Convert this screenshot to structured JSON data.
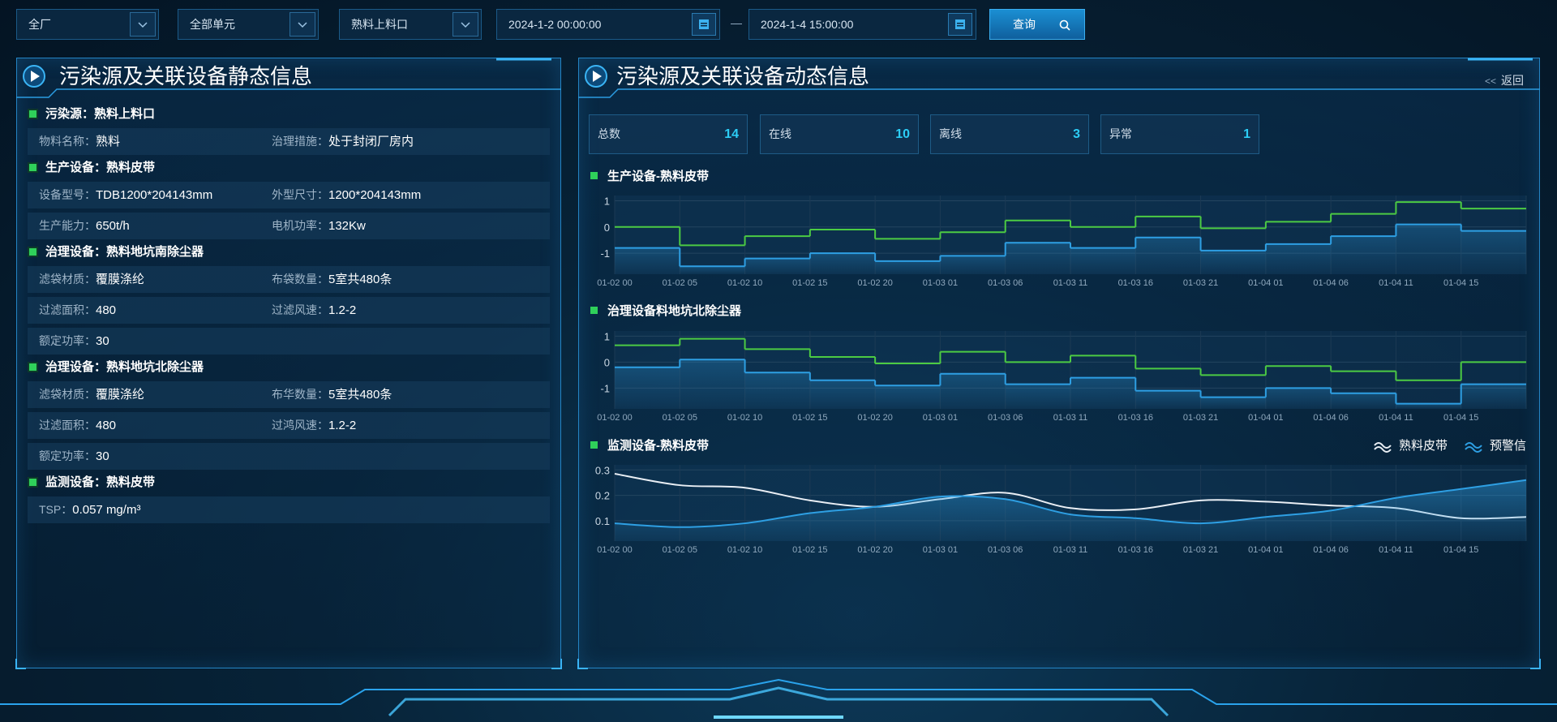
{
  "filters": {
    "selects": [
      "全厂",
      "全部单元",
      "熟料上料口"
    ],
    "start_date": "2024-1-2 00:00:00",
    "end_date": "2024-1-4 15:00:00",
    "button": "查询"
  },
  "static_panel": {
    "title": "污染源及关联设备静态信息",
    "sections": [
      {
        "title": "污染源：熟料上料口",
        "rows": [
          [
            {
              "label": "物料名称：",
              "value": "熟料"
            },
            {
              "label": "治理措施：",
              "value": "处于封闭厂房内"
            }
          ]
        ]
      },
      {
        "title": "生产设备：熟料皮带",
        "rows": [
          [
            {
              "label": "设备型号：",
              "value": "TDB1200*204143mm"
            },
            {
              "label": "外型尺寸：",
              "value": "1200*204143mm"
            }
          ],
          [
            {
              "label": "生产能力：",
              "value": "650t/h"
            },
            {
              "label": "电机功率：",
              "value": "132Kw"
            }
          ]
        ]
      },
      {
        "title": "治理设备：熟料地坑南除尘器",
        "rows": [
          [
            {
              "label": "滤袋材质：",
              "value": "覆膜涤纶"
            },
            {
              "label": "布袋数量：",
              "value": "5室共480条"
            }
          ],
          [
            {
              "label": "过滤面积：",
              "value": "480"
            },
            {
              "label": "过滤风速：",
              "value": "1.2-2"
            }
          ],
          [
            {
              "label": "额定功率：",
              "value": "30"
            }
          ]
        ]
      },
      {
        "title": "治理设备：熟料地坑北除尘器",
        "rows": [
          [
            {
              "label": "滤袋材质：",
              "value": "覆膜涤纶"
            },
            {
              "label": "布华数量：",
              "value": "5室共480条"
            }
          ],
          [
            {
              "label": "过滤面积：",
              "value": "480"
            },
            {
              "label": "过鸿风速：",
              "value": "1.2-2"
            }
          ],
          [
            {
              "label": "额定功率：",
              "value": "30"
            }
          ]
        ]
      },
      {
        "title": "监测设备：熟料皮带",
        "rows": [
          [
            {
              "label": "TSP：",
              "value": "0.057 mg/m³"
            }
          ]
        ]
      }
    ]
  },
  "dynamic_panel": {
    "title": "污染源及关联设备动态信息",
    "back": "返回",
    "stats": [
      {
        "label": "总数",
        "value": 14
      },
      {
        "label": "在线",
        "value": 10
      },
      {
        "label": "离线",
        "value": 3
      },
      {
        "label": "异常",
        "value": 1
      }
    ]
  },
  "chart_data": [
    {
      "type": "step",
      "title": "生产设备-熟料皮带",
      "categories": [
        "01-02 00",
        "01-02 05",
        "01-02 10",
        "01-02 15",
        "01-02 20",
        "01-03 01",
        "01-03 06",
        "01-03 11",
        "01-03 16",
        "01-03 21",
        "01-04 01",
        "01-04 06",
        "01-04 11",
        "01-04 15"
      ],
      "series": [
        {
          "color": "#4ccb43",
          "values": [
            0,
            -0.7,
            -0.35,
            -0.1,
            -0.45,
            -0.2,
            0.25,
            0,
            0.4,
            -0.05,
            0.2,
            0.5,
            0.95,
            0.7
          ]
        },
        {
          "color": "#2e9fe3",
          "area": true,
          "values": [
            -0.8,
            -1.5,
            -1.2,
            -1.0,
            -1.3,
            -1.1,
            -0.6,
            -0.8,
            -0.4,
            -0.9,
            -0.65,
            -0.35,
            0.1,
            -0.15
          ]
        }
      ],
      "ylim": [
        -1.8,
        1.2
      ],
      "yticks": [
        1,
        0,
        -1
      ],
      "grid": true
    },
    {
      "type": "step",
      "title": "治理设备料地坑北除尘器",
      "categories": [
        "01-02 00",
        "01-02 05",
        "01-02 10",
        "01-02 15",
        "01-02 20",
        "01-03 01",
        "01-03 06",
        "01-03 11",
        "01-03 16",
        "01-03 21",
        "01-04 01",
        "01-04 06",
        "01-04 11",
        "01-04 15"
      ],
      "series": [
        {
          "color": "#4ccb43",
          "values": [
            0.65,
            0.9,
            0.5,
            0.2,
            -0.05,
            0.4,
            0,
            0.25,
            -0.25,
            -0.5,
            -0.15,
            -0.35,
            -0.7,
            0
          ]
        },
        {
          "color": "#2e9fe3",
          "area": true,
          "values": [
            -0.2,
            0.1,
            -0.4,
            -0.7,
            -0.9,
            -0.45,
            -0.85,
            -0.6,
            -1.1,
            -1.35,
            -1.0,
            -1.2,
            -1.6,
            -0.85
          ]
        }
      ],
      "ylim": [
        -1.8,
        1.2
      ],
      "yticks": [
        1,
        0,
        -1
      ],
      "grid": true
    },
    {
      "type": "smooth",
      "title": "监测设备-熟料皮带",
      "categories": [
        "01-02 00",
        "01-02 05",
        "01-02 10",
        "01-02 15",
        "01-02 20",
        "01-03 01",
        "01-03 06",
        "01-03 11",
        "01-03 16",
        "01-03 21",
        "01-04 01",
        "01-04 06",
        "01-04 11",
        "01-04 15",
        null
      ],
      "series": [
        {
          "name": "熟料皮带",
          "color": "#e9eef4",
          "values": [
            0.285,
            0.24,
            0.23,
            0.18,
            0.155,
            0.185,
            0.21,
            0.15,
            0.145,
            0.18,
            0.175,
            0.16,
            0.15,
            0.11,
            0.115
          ]
        },
        {
          "name": "预警信",
          "color": "#2e9fe3",
          "area": true,
          "values": [
            0.09,
            0.075,
            0.09,
            0.13,
            0.155,
            0.195,
            0.185,
            0.125,
            0.11,
            0.09,
            0.115,
            0.14,
            0.19,
            0.225,
            0.26
          ]
        }
      ],
      "ylim": [
        0.02,
        0.32
      ],
      "yticks": [
        0.3,
        0.2,
        0.1
      ],
      "grid": true,
      "legend": "top-right"
    }
  ]
}
